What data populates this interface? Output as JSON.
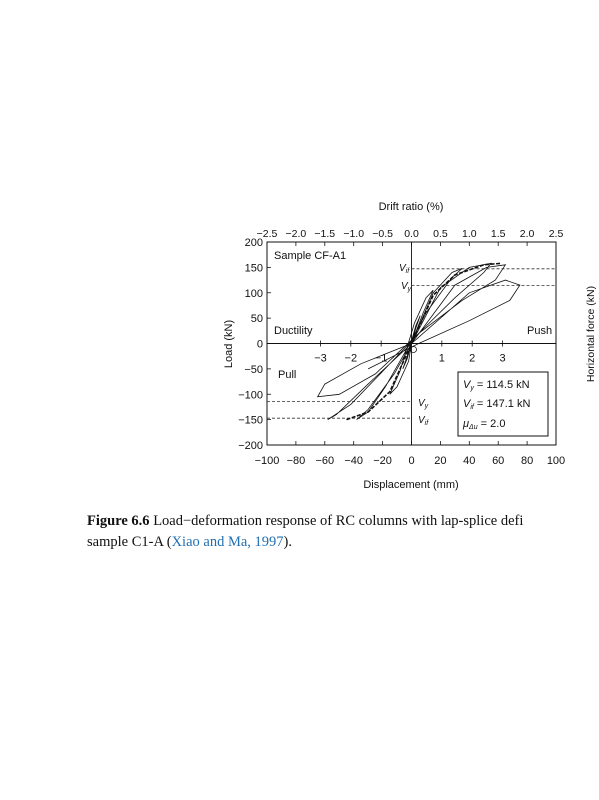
{
  "left_chart": {
    "top_axis_label": "Drift ratio (%)",
    "top_ticks": [
      "−2.5",
      "−2.0",
      "−1.5",
      "−1.0",
      "−0.5",
      "0.0",
      "0.5",
      "1.0",
      "1.5",
      "2.0",
      "2.5"
    ],
    "x_axis_label": "Displacement (mm)",
    "x_ticks": [
      "−100",
      "−80",
      "−60",
      "−40",
      "−20",
      "0",
      "20",
      "40",
      "60",
      "80",
      "100"
    ],
    "y_axis_label": "Load (kN)",
    "y_ticks": [
      "200",
      "150",
      "100",
      "50",
      "0",
      "−50",
      "−100",
      "−150",
      "−200"
    ],
    "ductility_ticks": [
      "−3",
      "−2",
      "−1",
      "0",
      "1",
      "2",
      "3"
    ],
    "sample_label": "Sample CF-A1",
    "ductility_label": "Ductility",
    "push_label": "Push",
    "pull_label": "Pull",
    "vif_label": "V",
    "vif_sub": "if",
    "vy_label": "V",
    "vy_sub": "y",
    "legend": {
      "vy_name": "V",
      "vy_sub": "y",
      "vy_value": " = 114.5 kN",
      "vif_name": "V",
      "vif_sub": "if",
      "vif_value": " = 147.1 kN",
      "mu_name": "μ",
      "mu_sub": "Δu",
      "mu_value": " = 2.0"
    }
  },
  "right_chart_partial": {
    "y_axis_label": "Horizontal force (kN)"
  },
  "chart_data": {
    "type": "line",
    "title": "",
    "xlabel": "Displacement (mm)",
    "ylabel": "Load (kN)",
    "secondary_xlabel": "Drift ratio (%)",
    "xlim": [
      -100,
      100
    ],
    "ylim": [
      -200,
      200
    ],
    "grid": false,
    "annotations": {
      "Vy": 114.5,
      "Vif": 147.1,
      "mu_delta_u": 2.0,
      "Vif_neg": -147.1,
      "Vy_neg": -114.5
    },
    "series": [
      {
        "name": "",
        "x": [
          0,
          3,
          6,
          3,
          0,
          -3,
          -6,
          -3,
          0,
          8,
          15,
          10,
          2,
          -8,
          -15,
          -10,
          -2,
          0,
          15,
          28,
          35,
          28,
          10,
          -5,
          -18,
          -30,
          -38,
          -30,
          -12,
          0,
          20,
          40,
          55,
          50,
          30,
          5,
          -20,
          -42,
          -58,
          -52,
          -30,
          0,
          30,
          52,
          65,
          58,
          35,
          5,
          -25,
          -50,
          -65,
          -60,
          -35,
          0,
          40,
          65,
          75,
          68,
          40,
          5,
          -30
        ],
        "y": [
          0,
          30,
          55,
          35,
          5,
          -25,
          -50,
          -30,
          0,
          60,
          105,
          90,
          40,
          -55,
          -100,
          -85,
          -35,
          0,
          100,
          140,
          148,
          130,
          60,
          -20,
          -85,
          -135,
          -150,
          -130,
          -60,
          0,
          110,
          150,
          158,
          140,
          90,
          20,
          -55,
          -120,
          -150,
          -140,
          -80,
          0,
          115,
          150,
          155,
          125,
          85,
          20,
          -60,
          -100,
          -105,
          -80,
          -40,
          0,
          100,
          125,
          115,
          85,
          45,
          0,
          -50
        ]
      }
    ]
  },
  "caption": {
    "fig_number": "Figure 6.6",
    "text": " Load−deformation response of RC columns with lap-splice defi",
    "line2_before": "sample C1-A (",
    "citation": "Xiao and Ma, 1997",
    "line2_after": ")."
  }
}
